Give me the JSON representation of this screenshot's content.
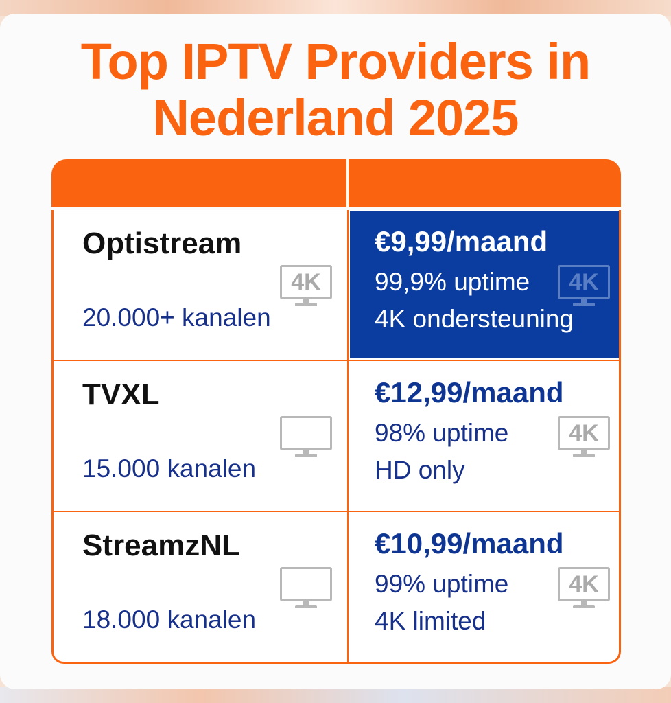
{
  "title": {
    "line1": "Top IPTV Providers in",
    "line2": "Nederland 2025"
  },
  "colors": {
    "accent": "#fa6410",
    "highlight": "#0a3d9f",
    "text_navy": "#17308a"
  },
  "providers": [
    {
      "name": "Optistream",
      "channels": "20.000+ kanalen",
      "price": "€9,99/maand",
      "uptime": "99,9% uptime",
      "quality": "4K ondersteuning",
      "left_icon": "tv-4k-icon",
      "left_icon_text": "4K",
      "right_icon": "tv-4k-icon",
      "right_icon_text": "4K",
      "highlighted": true
    },
    {
      "name": "TVXL",
      "channels": "15.000 kanalen",
      "price": "€12,99/maand",
      "uptime": "98% uptime",
      "quality": "HD only",
      "left_icon": "tv-icon",
      "right_icon": "tv-4k-icon",
      "right_icon_text": "4K",
      "highlighted": false
    },
    {
      "name": "StreamzNL",
      "channels": "18.000 kanalen",
      "price": "€10,99/maand",
      "uptime": "99% uptime",
      "quality": "4K limited",
      "left_icon": "tv-icon",
      "right_icon": "tv-4k-icon",
      "right_icon_text": "4K",
      "highlighted": false
    }
  ]
}
